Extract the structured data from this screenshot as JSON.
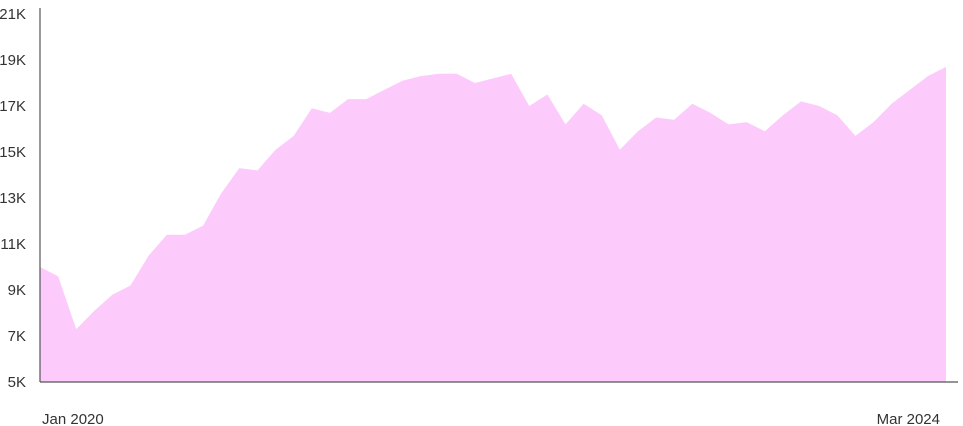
{
  "chart_data": {
    "type": "area",
    "title": "",
    "xlabel": "",
    "ylabel": "",
    "ylim": [
      5000,
      21000
    ],
    "y_ticks": [
      {
        "value": 5000,
        "label": "5K"
      },
      {
        "value": 7000,
        "label": "7K"
      },
      {
        "value": 9000,
        "label": "9K"
      },
      {
        "value": 11000,
        "label": "11K"
      },
      {
        "value": 13000,
        "label": "13K"
      },
      {
        "value": 15000,
        "label": "15K"
      },
      {
        "value": 17000,
        "label": "17K"
      },
      {
        "value": 19000,
        "label": "19K"
      },
      {
        "value": 21000,
        "label": "21K"
      }
    ],
    "x_tick_labels": {
      "first": "Jan 2020",
      "last": "Mar 2024"
    },
    "x": [
      "2020-01",
      "2020-02",
      "2020-03",
      "2020-04",
      "2020-05",
      "2020-06",
      "2020-07",
      "2020-08",
      "2020-09",
      "2020-10",
      "2020-11",
      "2020-12",
      "2021-01",
      "2021-02",
      "2021-03",
      "2021-04",
      "2021-05",
      "2021-06",
      "2021-07",
      "2021-08",
      "2021-09",
      "2021-10",
      "2021-11",
      "2021-12",
      "2022-01",
      "2022-02",
      "2022-03",
      "2022-04",
      "2022-05",
      "2022-06",
      "2022-07",
      "2022-08",
      "2022-09",
      "2022-10",
      "2022-11",
      "2022-12",
      "2023-01",
      "2023-02",
      "2023-03",
      "2023-04",
      "2023-05",
      "2023-06",
      "2023-07",
      "2023-08",
      "2023-09",
      "2023-10",
      "2023-11",
      "2023-12",
      "2024-01",
      "2024-02",
      "2024-03"
    ],
    "series": [
      {
        "values": [
          10000,
          9600,
          7300,
          8100,
          8800,
          9200,
          10500,
          11400,
          11400,
          11800,
          13200,
          14300,
          14200,
          15100,
          15700,
          16900,
          16700,
          17300,
          17300,
          17700,
          18100,
          18300,
          18400,
          18400,
          18000,
          18200,
          18400,
          17000,
          17500,
          16200,
          17100,
          16600,
          15100,
          15900,
          16500,
          16400,
          17100,
          16700,
          16200,
          16300,
          15900,
          16600,
          17200,
          17000,
          16600,
          15700,
          16300,
          17100,
          17700,
          18300,
          18700
        ],
        "color": "#fccbfc"
      }
    ],
    "grid": false,
    "legend": "none"
  }
}
